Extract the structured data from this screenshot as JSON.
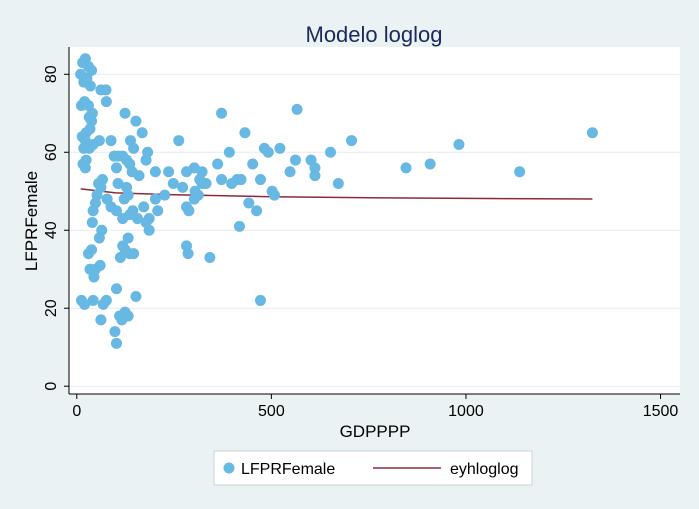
{
  "colors": {
    "background": "#eaf2f3",
    "plot_background": "#ffffff",
    "scatter": "#67b8e3",
    "line": "#8b2a3a",
    "grid": "#e4ecef",
    "title": "#1a2a5a"
  },
  "chart_data": {
    "type": "scatter",
    "title": "Modelo loglog",
    "xlabel": "GDPPPP",
    "ylabel": "LFPRFemale",
    "xlim": [
      -20,
      1550
    ],
    "ylim": [
      -2,
      87
    ],
    "xticks": [
      0,
      500,
      1000,
      1500
    ],
    "yticks": [
      0,
      20,
      40,
      60,
      80
    ],
    "grid": true,
    "legend_placement": "bottom",
    "series": [
      {
        "name": "LFPRFemale",
        "kind": "scatter",
        "color": "#67b8e3",
        "points": [
          [
            10,
            80
          ],
          [
            15,
            83
          ],
          [
            22,
            84
          ],
          [
            30,
            82
          ],
          [
            38,
            81
          ],
          [
            18,
            78
          ],
          [
            26,
            79
          ],
          [
            35,
            77
          ],
          [
            62,
            76
          ],
          [
            75,
            76
          ],
          [
            12,
            72
          ],
          [
            20,
            73
          ],
          [
            30,
            72
          ],
          [
            40,
            70
          ],
          [
            76,
            73
          ],
          [
            32,
            69
          ],
          [
            38,
            68
          ],
          [
            14,
            64
          ],
          [
            24,
            65
          ],
          [
            34,
            66
          ],
          [
            42,
            62
          ],
          [
            28,
            62
          ],
          [
            22,
            63
          ],
          [
            18,
            61
          ],
          [
            24,
            58
          ],
          [
            16,
            57
          ],
          [
            22,
            56
          ],
          [
            32,
            61
          ],
          [
            58,
            63
          ],
          [
            88,
            63
          ],
          [
            124,
            70
          ],
          [
            152,
            68
          ],
          [
            168,
            65
          ],
          [
            138,
            63
          ],
          [
            146,
            61
          ],
          [
            106,
            59
          ],
          [
            118,
            59
          ],
          [
            128,
            58
          ],
          [
            136,
            57
          ],
          [
            96,
            59
          ],
          [
            102,
            56
          ],
          [
            142,
            55
          ],
          [
            160,
            54
          ],
          [
            182,
            60
          ],
          [
            178,
            58
          ],
          [
            202,
            55
          ],
          [
            236,
            55
          ],
          [
            262,
            63
          ],
          [
            282,
            55
          ],
          [
            302,
            56
          ],
          [
            322,
            55
          ],
          [
            332,
            52
          ],
          [
            362,
            57
          ],
          [
            372,
            53
          ],
          [
            392,
            60
          ],
          [
            372,
            70
          ],
          [
            432,
            65
          ],
          [
            452,
            57
          ],
          [
            482,
            61
          ],
          [
            492,
            60
          ],
          [
            522,
            61
          ],
          [
            562,
            58
          ],
          [
            566,
            71
          ],
          [
            548,
            55
          ],
          [
            602,
            58
          ],
          [
            612,
            54
          ],
          [
            652,
            60
          ],
          [
            672,
            52
          ],
          [
            706,
            63
          ],
          [
            612,
            56
          ],
          [
            846,
            56
          ],
          [
            908,
            57
          ],
          [
            982,
            62
          ],
          [
            1138,
            55
          ],
          [
            1325,
            65
          ],
          [
            272,
            51
          ],
          [
            226,
            49
          ],
          [
            202,
            48
          ],
          [
            248,
            52
          ],
          [
            208,
            45
          ],
          [
            186,
            43
          ],
          [
            172,
            46
          ],
          [
            136,
            44
          ],
          [
            118,
            43
          ],
          [
            88,
            46
          ],
          [
            78,
            48
          ],
          [
            66,
            53
          ],
          [
            62,
            51
          ],
          [
            56,
            52
          ],
          [
            52,
            49
          ],
          [
            48,
            47
          ],
          [
            42,
            45
          ],
          [
            40,
            42
          ],
          [
            64,
            40
          ],
          [
            58,
            38
          ],
          [
            102,
            45
          ],
          [
            106,
            52
          ],
          [
            122,
            48
          ],
          [
            128,
            51
          ],
          [
            132,
            49
          ],
          [
            144,
            45
          ],
          [
            178,
            42
          ],
          [
            186,
            40
          ],
          [
            156,
            43
          ],
          [
            132,
            38
          ],
          [
            118,
            36
          ],
          [
            124,
            35
          ],
          [
            136,
            34
          ],
          [
            146,
            34
          ],
          [
            112,
            33
          ],
          [
            282,
            36
          ],
          [
            286,
            34
          ],
          [
            342,
            33
          ],
          [
            282,
            46
          ],
          [
            288,
            45
          ],
          [
            302,
            48
          ],
          [
            312,
            49
          ],
          [
            322,
            52
          ],
          [
            398,
            52
          ],
          [
            412,
            53
          ],
          [
            422,
            53
          ],
          [
            442,
            47
          ],
          [
            462,
            45
          ],
          [
            472,
            53
          ],
          [
            502,
            50
          ],
          [
            508,
            49
          ],
          [
            418,
            41
          ],
          [
            38,
            35
          ],
          [
            30,
            34
          ],
          [
            48,
            30
          ],
          [
            34,
            30
          ],
          [
            44,
            28
          ],
          [
            60,
            31
          ],
          [
            42,
            22
          ],
          [
            76,
            22
          ],
          [
            68,
            21
          ],
          [
            62,
            17
          ],
          [
            12,
            22
          ],
          [
            20,
            21
          ],
          [
            102,
            25
          ],
          [
            110,
            18
          ],
          [
            116,
            17
          ],
          [
            124,
            19
          ],
          [
            132,
            18
          ],
          [
            152,
            23
          ],
          [
            98,
            14
          ],
          [
            102,
            11
          ],
          [
            472,
            22
          ],
          [
            304,
            50
          ],
          [
            316,
            53
          ]
        ]
      },
      {
        "name": "eyhloglog",
        "kind": "line",
        "color": "#8b2a3a",
        "points": [
          [
            10,
            50.6
          ],
          [
            100,
            49.6
          ],
          [
            250,
            49.1
          ],
          [
            500,
            48.6
          ],
          [
            800,
            48.3
          ],
          [
            1100,
            48.1
          ],
          [
            1325,
            48
          ]
        ]
      }
    ]
  }
}
